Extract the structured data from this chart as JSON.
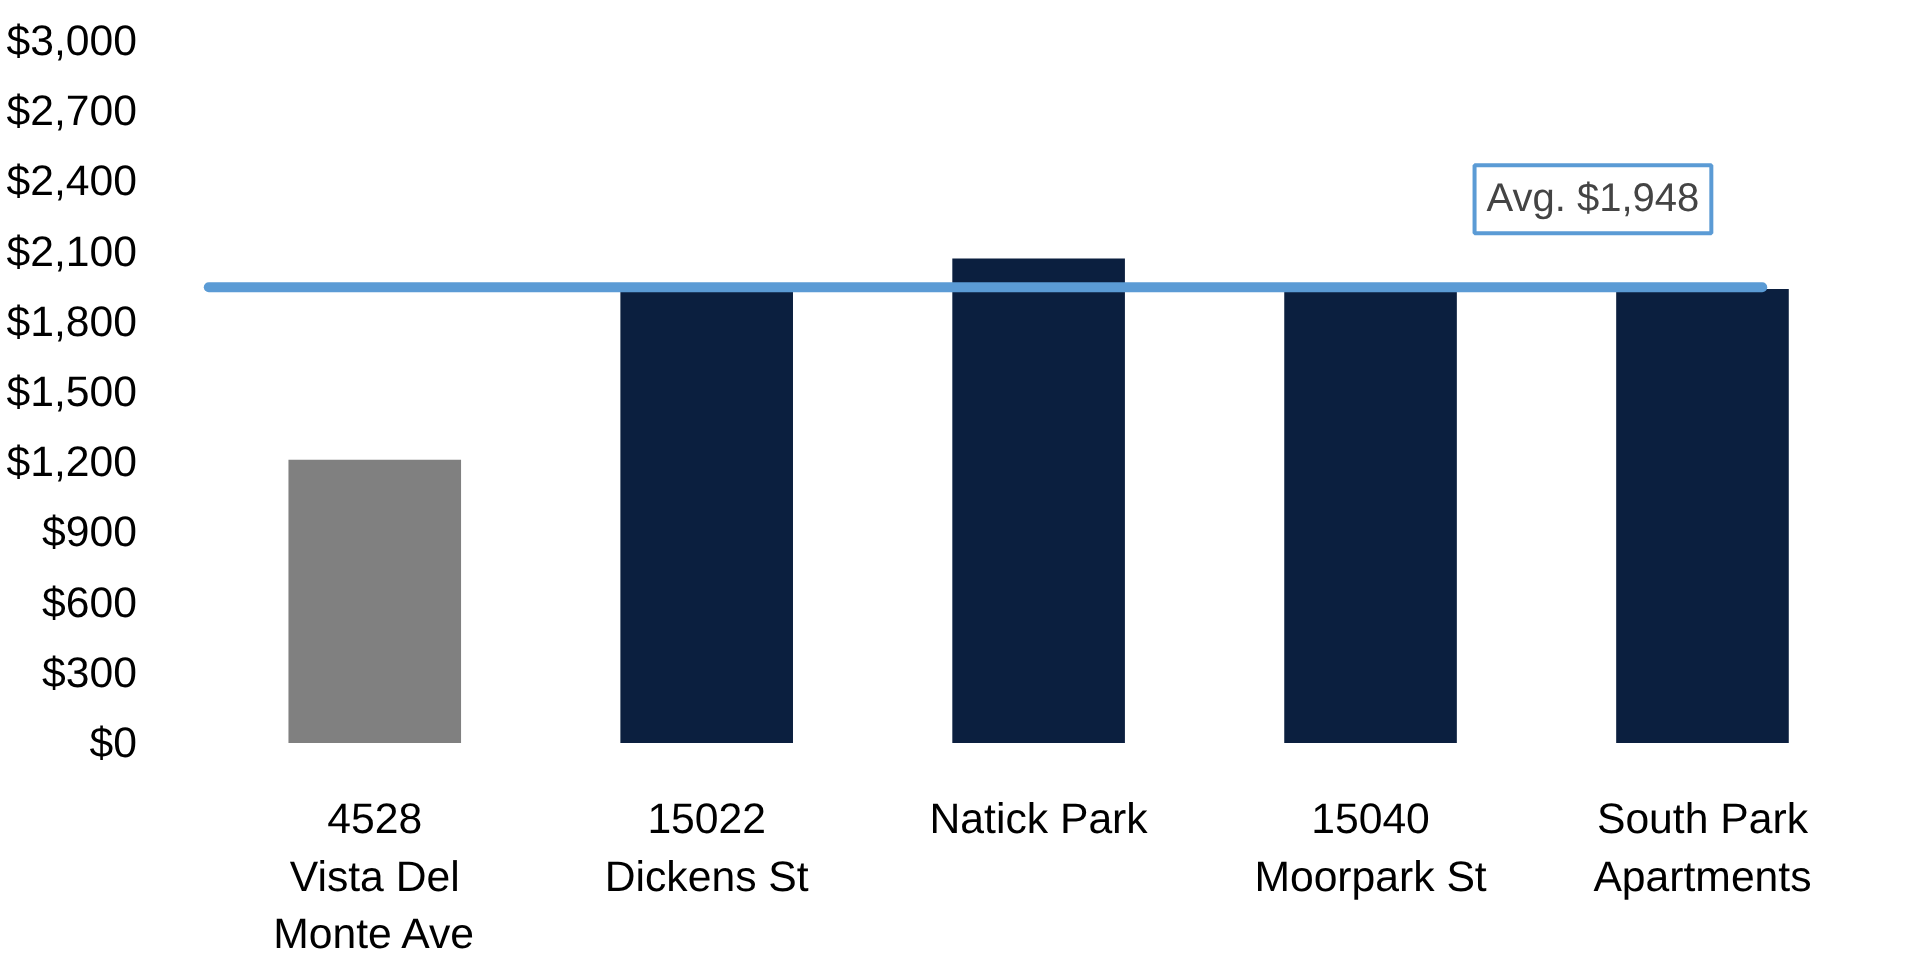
{
  "chart_data": {
    "type": "bar",
    "categories": [
      "4528\nVista Del\nMonte Ave",
      "15022\nDickens St",
      "Natick Park",
      "15040\nMoorpark St",
      "South Park\nApartments"
    ],
    "values": [
      1210,
      1950,
      2070,
      1930,
      1940
    ],
    "colors": [
      "#808080",
      "#0b1f3f",
      "#0b1f3f",
      "#0b1f3f",
      "#0b1f3f"
    ],
    "ylim": [
      0,
      3000
    ],
    "yticks": [
      {
        "value": 0,
        "label": "$0"
      },
      {
        "value": 300,
        "label": "$300"
      },
      {
        "value": 600,
        "label": "$600"
      },
      {
        "value": 900,
        "label": "$900"
      },
      {
        "value": 1200,
        "label": "$1,200"
      },
      {
        "value": 1500,
        "label": "$1,500"
      },
      {
        "value": 1800,
        "label": "$1,800"
      },
      {
        "value": 2100,
        "label": "$2,100"
      },
      {
        "value": 2400,
        "label": "$2,400"
      },
      {
        "value": 2700,
        "label": "$2,700"
      },
      {
        "value": 3000,
        "label": "$3,000"
      }
    ],
    "ref_lines": [
      {
        "axis": "y",
        "value": 1948,
        "label": "Avg. $1,948",
        "color": "#5b9bd5"
      }
    ],
    "grid": false
  }
}
